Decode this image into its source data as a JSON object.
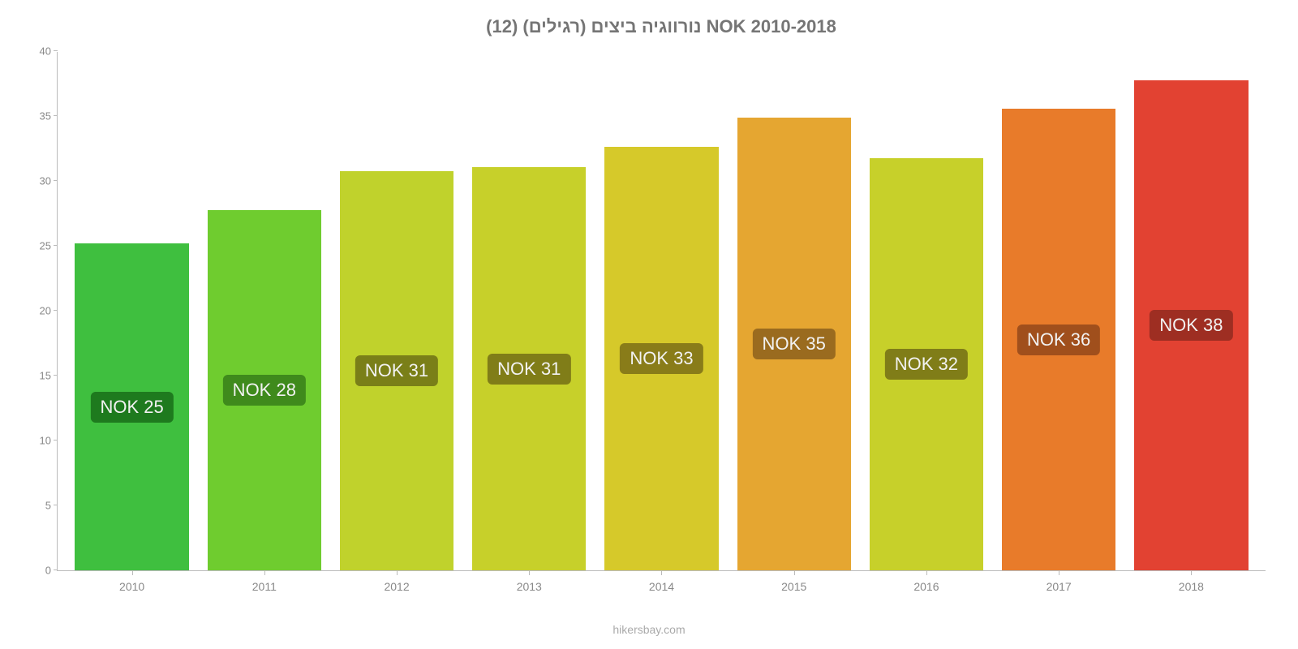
{
  "chart": {
    "type": "bar",
    "title": "נורווגיה ביצים (רגילים) (12) NOK 2010-2018",
    "title_fontsize": 22,
    "title_color": "#757575",
    "background_color": "#ffffff",
    "axis_color": "#bbbbbb",
    "tick_label_color": "#888888",
    "tick_fontsize": 13,
    "ylim_min": 0,
    "ylim_max": 40,
    "ytick_step": 5,
    "yticks": [
      0,
      5,
      10,
      15,
      20,
      25,
      30,
      35,
      40
    ],
    "categories": [
      "2010",
      "2011",
      "2012",
      "2013",
      "2014",
      "2015",
      "2016",
      "2017",
      "2018"
    ],
    "values": [
      25.2,
      27.8,
      30.8,
      31.1,
      32.7,
      34.9,
      31.8,
      35.6,
      37.8
    ],
    "value_labels": [
      "NOK 25",
      "NOK 28",
      "NOK 31",
      "NOK 31",
      "NOK 33",
      "NOK 35",
      "NOK 32",
      "NOK 36",
      "NOK 38"
    ],
    "bar_colors": [
      "#3fbf3f",
      "#6fcc2f",
      "#c0d22c",
      "#c7d02a",
      "#d6c92a",
      "#e5a631",
      "#c7d02a",
      "#e87b2a",
      "#e24232"
    ],
    "label_bg_colors": [
      "#1e7a1e",
      "#3f8a1c",
      "#7a7f18",
      "#807d18",
      "#897c19",
      "#9a6b1f",
      "#807d18",
      "#a04f1c",
      "#9e2e22"
    ],
    "label_text_color": "#f2f2f2",
    "label_fontsize": 22,
    "bar_width_pct": 86,
    "attribution": "hikersbay.com",
    "attribution_color": "#aaaaaa",
    "attribution_fontsize": 14
  }
}
